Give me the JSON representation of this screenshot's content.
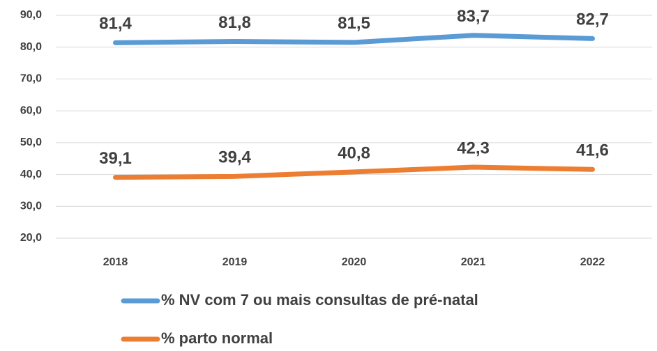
{
  "chart_data": {
    "type": "line",
    "categories": [
      "2018",
      "2019",
      "2020",
      "2021",
      "2022"
    ],
    "series": [
      {
        "name": "% NV com 7 ou mais consultas de pré-natal",
        "color": "#5b9bd5",
        "values": [
          81.4,
          81.8,
          81.5,
          83.7,
          82.7
        ],
        "value_labels": [
          "81,4",
          "81,8",
          "81,5",
          "83,7",
          "82,7"
        ]
      },
      {
        "name": "% parto normal",
        "color": "#ed7d31",
        "values": [
          39.1,
          39.4,
          40.8,
          42.3,
          41.6
        ],
        "value_labels": [
          "39,1",
          "39,4",
          "40,8",
          "42,3",
          "41,6"
        ]
      }
    ],
    "ylim": [
      20,
      90
    ],
    "yticks": [
      {
        "value": 20,
        "label": "20,0"
      },
      {
        "value": 30,
        "label": "30,0"
      },
      {
        "value": 40,
        "label": "40,0"
      },
      {
        "value": 50,
        "label": "50,0"
      },
      {
        "value": 60,
        "label": "60,0"
      },
      {
        "value": 70,
        "label": "70,0"
      },
      {
        "value": 80,
        "label": "80,0"
      },
      {
        "value": 90,
        "label": "90,0"
      }
    ],
    "grid": true,
    "legend": "bottom"
  }
}
